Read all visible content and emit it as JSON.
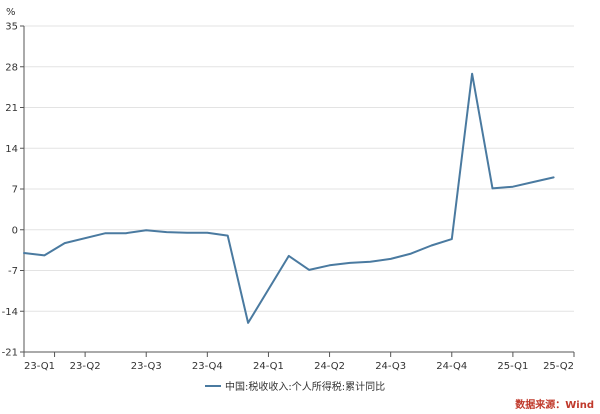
{
  "chart_data": {
    "type": "line",
    "unit": "%",
    "ylim": [
      -21,
      35
    ],
    "y_ticks": [
      35,
      28,
      21,
      14,
      7,
      0,
      -7,
      -14,
      -21
    ],
    "x_tick_labels": [
      "23-Q1",
      "23-Q2",
      "23-Q3",
      "23-Q4",
      "24-Q1",
      "24-Q2",
      "24-Q3",
      "24-Q4",
      "25-Q1",
      "25-Q2"
    ],
    "x_tick_months": [
      0,
      3,
      6,
      9,
      12,
      15,
      18,
      21,
      24,
      27
    ],
    "grid": "horizontal",
    "legend_position": "bottom",
    "series": [
      {
        "name": "中国:税收收入:个人所得税:累计同比",
        "color": "#4a7aa0",
        "months": [
          0,
          1,
          2,
          4,
          5,
          6,
          7,
          8,
          9,
          10,
          11,
          13,
          14,
          15,
          16,
          17,
          18,
          19,
          20,
          21,
          22,
          23,
          24,
          25,
          26
        ],
        "values": [
          -4.0,
          -4.4,
          -2.3,
          -0.6,
          -0.6,
          -0.1,
          -0.4,
          -0.5,
          -0.5,
          -1.0,
          -16.0,
          -4.5,
          -6.9,
          -6.1,
          -5.7,
          -5.5,
          -5.0,
          -4.1,
          -2.7,
          -1.6,
          26.8,
          7.1,
          7.4,
          8.2,
          9.0
        ]
      }
    ]
  },
  "source": "数据来源：Wind"
}
